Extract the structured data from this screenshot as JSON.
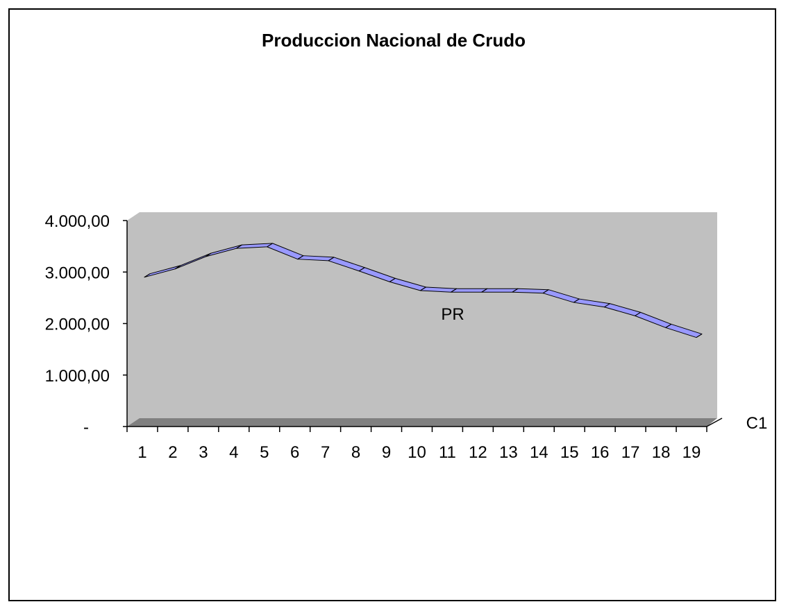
{
  "chart_data": {
    "type": "line",
    "title": "Produccion Nacional de Crudo",
    "categories": [
      "1",
      "2",
      "3",
      "4",
      "5",
      "6",
      "7",
      "8",
      "9",
      "10",
      "11",
      "12",
      "13",
      "14",
      "15",
      "16",
      "17",
      "18",
      "19"
    ],
    "series": [
      {
        "name": "PR",
        "values": [
          2900,
          3060,
          3300,
          3460,
          3490,
          3250,
          3220,
          3020,
          2810,
          2640,
          2610,
          2610,
          2610,
          2590,
          2410,
          2320,
          2150,
          1920,
          1730
        ]
      }
    ],
    "y_ticks": [
      "-",
      "1.000,00",
      "2.000,00",
      "3.000,00",
      "4.000,00"
    ],
    "ylim": [
      0,
      4000
    ],
    "series_axis_label": "C1",
    "grid": false,
    "legend": "none",
    "style": "3d-ribbon",
    "colors": {
      "wall": "#c0c0c0",
      "floor": "#808080",
      "ribbon": "#9999ff",
      "ribbon_side": "#6666cc"
    }
  }
}
